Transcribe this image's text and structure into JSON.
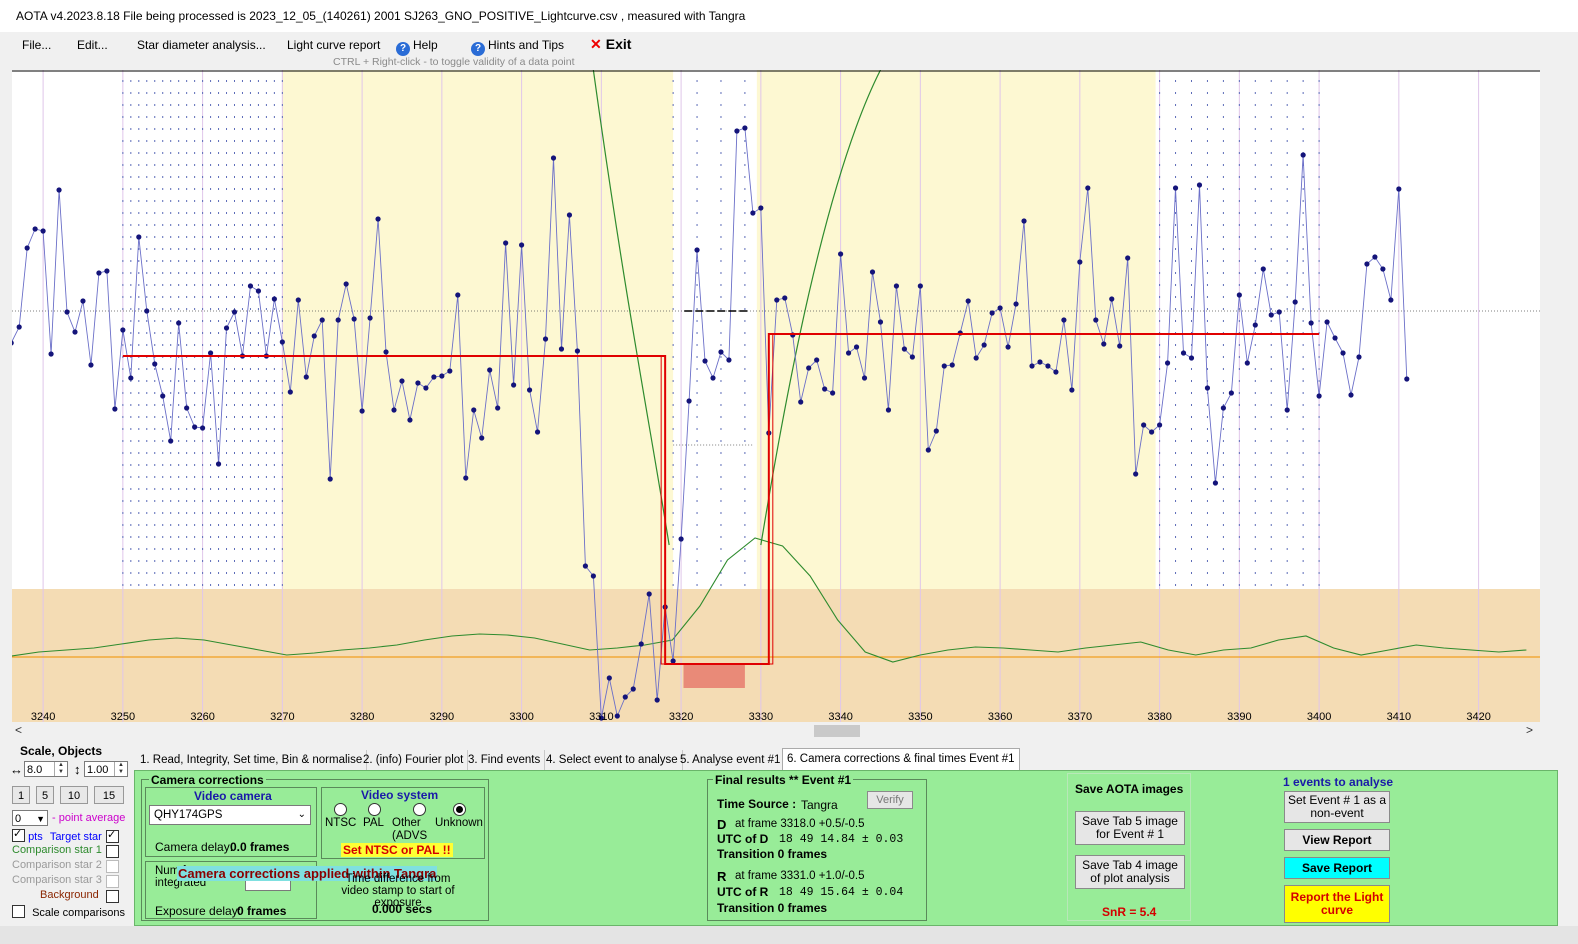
{
  "window": {
    "title": "AOTA v4.2023.8.18    File being processed is  2023_12_05_(140261) 2001 SJ263_GNO_POSITIVE_Lightcurve.csv ,  measured with Tangra"
  },
  "menu": {
    "file": "File...",
    "edit": "Edit...",
    "star_diameter": "Star diameter analysis...",
    "light_curve_report": "Light curve report",
    "help": "Help",
    "hints": "Hints and Tips",
    "exit": "Exit"
  },
  "hint_text": "CTRL + Right-click   -   to toggle validity of a data point",
  "chart_data": {
    "type": "line",
    "x_ticks": [
      "3240",
      "3250",
      "3260",
      "3270",
      "3280",
      "3290",
      "3300",
      "3310",
      "3320",
      "3330",
      "3340",
      "3350",
      "3360",
      "3370",
      "3380",
      "3390",
      "3400",
      "3410",
      "3420"
    ],
    "xlim": [
      3236.1,
      3427.7
    ],
    "series": [
      {
        "role": "light curve points",
        "color": "#6b6fc8",
        "x_start": 3236,
        "values": [
          343,
          327,
          248,
          229,
          231,
          354,
          190,
          312,
          332,
          301,
          365,
          273,
          271,
          409,
          330,
          378,
          237,
          311,
          364,
          396,
          441,
          323,
          408,
          427,
          428,
          353,
          464,
          328,
          312,
          356,
          286,
          291,
          356,
          299,
          342,
          392,
          300,
          377,
          336,
          320,
          479,
          320,
          284,
          319,
          411,
          318,
          219,
          352,
          410,
          381,
          420,
          383,
          388,
          377,
          376,
          371,
          295,
          478,
          410,
          438,
          370,
          408,
          243,
          385,
          245,
          390,
          432,
          339,
          158,
          349,
          215,
          351,
          566,
          576,
          718,
          678,
          716,
          697,
          689,
          644,
          594,
          700,
          607,
          661,
          539,
          401,
          250,
          361,
          378,
          352,
          360,
          131,
          128,
          213,
          208,
          433,
          300,
          298,
          335,
          402,
          368,
          360,
          389,
          393,
          254,
          353,
          347,
          378,
          272,
          322,
          410,
          286,
          349,
          357,
          286,
          450,
          431,
          366,
          365,
          333,
          301,
          358,
          345,
          313,
          308,
          347,
          304,
          221,
          366,
          362,
          366,
          372,
          320,
          390,
          262,
          188,
          320,
          344,
          299,
          346,
          258,
          474,
          425,
          432,
          425,
          363,
          188,
          353,
          358,
          185,
          388,
          483,
          408,
          393,
          295,
          363,
          325,
          269,
          315,
          312,
          410,
          302,
          155,
          323,
          396,
          322,
          338,
          353,
          395,
          357,
          264,
          257,
          269,
          300,
          189,
          379
        ]
      }
    ],
    "step_levels": {
      "baseline": 356,
      "event_bottom": 664,
      "post_event": 334
    },
    "event_frames": {
      "D": 3318.0,
      "R": 3331.0
    },
    "snr": "SnR = 5.4"
  },
  "left_panel": {
    "title": "Scale,  Objects",
    "scale_x": "8.0",
    "scale_y": "1.00",
    "presets": [
      "1",
      "5",
      "10",
      "15"
    ],
    "point_avg_value": "0",
    "point_avg_label": "- point average",
    "pts_label": "pts",
    "target_star": "Target star",
    "comp1": "Comparison star 1",
    "comp2": "Comparison star 2",
    "comp3": "Comparison star 3",
    "background": "Background",
    "scale_comparisons": "Scale comparisons",
    "colors": {
      "target": "#0000ff",
      "comp1": "#2e8b2e",
      "comp_disabled": "#9a9a9a",
      "background": "#8b2500",
      "point_avg": "#cc00cc"
    }
  },
  "tabs": [
    "1.  Read, Integrity, Set time, Bin & normalise",
    "2. (info)  Fourier plot",
    "3. Find events",
    "4. Select event to analyse",
    "5. Analyse event #1",
    "6. Camera corrections & final times Event #1"
  ],
  "camera": {
    "group_title": "Camera corrections",
    "video_camera_title": "Video camera",
    "camera_value": "QHY174GPS",
    "camera_delay_label": "Camera delay:",
    "camera_delay_value": "0.0 frames",
    "video_system_title": "Video system",
    "radios": [
      "NTSC",
      "PAL",
      "Other (ADVS",
      "Unknown"
    ],
    "set_ntsc": "Set NTSC or PAL !!",
    "frames_integrated_label": "Num frames integrated",
    "applied_banner": "Camera corrections applied within Tangra",
    "time_diff_label": "Time difference from video stamp to start of exposure",
    "time_diff_value": "0.000 secs",
    "exposure_delay_label": "Exposure delay:",
    "exposure_delay_value": "0 frames"
  },
  "final": {
    "title": "Final results  **  Event #1",
    "time_source_label": "Time Source :",
    "time_source_value": "Tangra",
    "verify": "Verify",
    "d_letter": "D",
    "d_frame": "at frame 3318.0 +0.5/-0.5",
    "utc_d_label": "UTC of D",
    "utc_d_value": "18 49 14.84  ± 0.03",
    "d_transition": "Transition  0 frames",
    "r_letter": "R",
    "r_frame": "at frame 3331.0 +1.0/-0.5",
    "utc_r_label": "UTC of R",
    "utc_r_value": "18 49 15.64  ± 0.04",
    "r_transition": "Transition  0 frames"
  },
  "save": {
    "title": "Save AOTA images",
    "tab5": "Save Tab 5 image for Event # 1",
    "tab4": "Save Tab 4 image of plot analysis",
    "snr": "SnR = 5.4"
  },
  "events": {
    "title": "1 events to analyse",
    "set_non_event": "Set Event # 1 as a non-event",
    "view_report": "View Report",
    "save_report": "Save Report",
    "report_light_curve": "Report the Light curve"
  }
}
